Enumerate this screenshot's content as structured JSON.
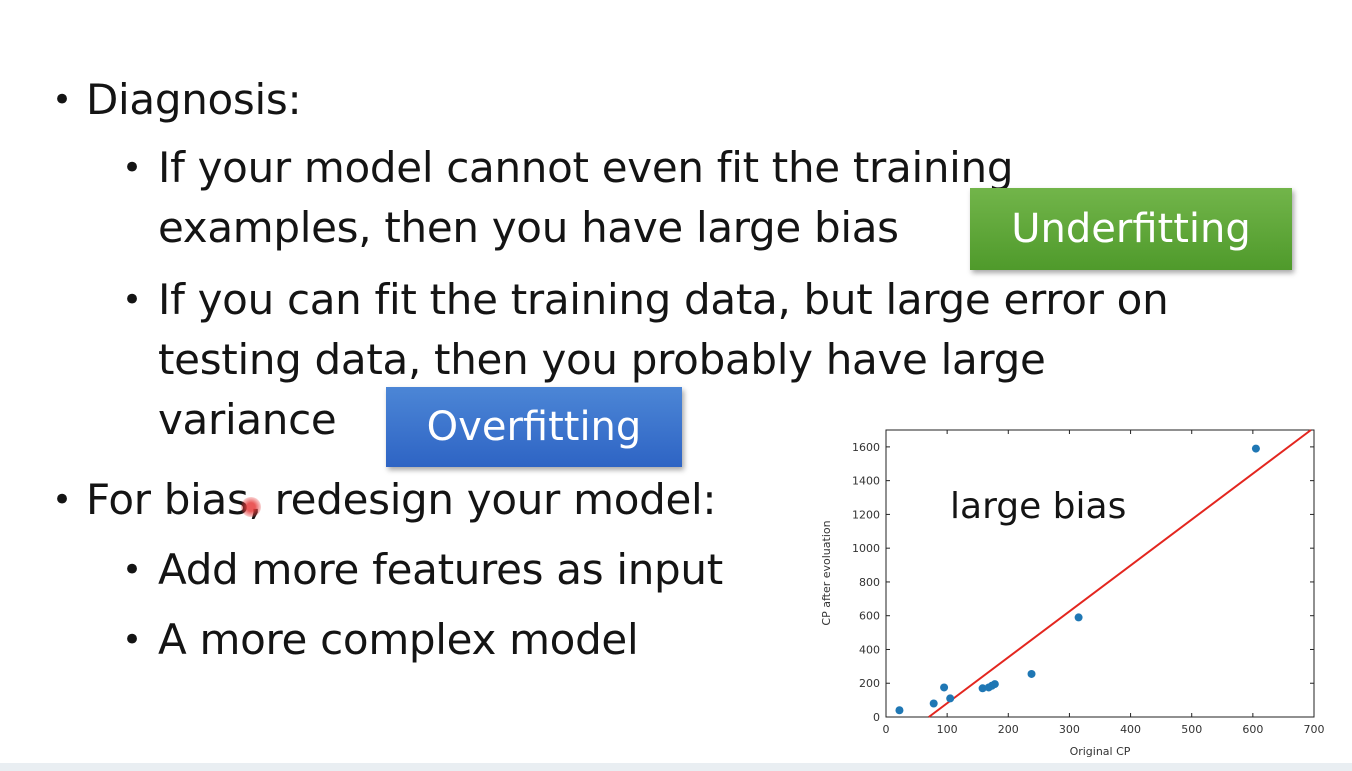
{
  "slide": {
    "diagnosis_title": "Diagnosis:",
    "underfit_line1": "If your model cannot even fit the training",
    "underfit_line2": "examples, then you have large bias",
    "overfit_line1": "If you can fit the training data, but large error on",
    "overfit_line2": "testing data, then you probably have large",
    "overfit_line3": "variance",
    "bias_title": "For bias, redesign your model:",
    "remedy_1": "Add more features as input",
    "remedy_2": "A more complex model",
    "bullet": "•"
  },
  "tags": {
    "underfitting": "Underfitting",
    "overfitting": "Overfitting"
  },
  "colors": {
    "underfitting_tag": "#5aa532",
    "overfitting_tag": "#3a72cc",
    "fit_line": "#e3261f",
    "points": "#1f77b4"
  },
  "chart_data": {
    "type": "scatter",
    "annotation": "large bias",
    "xlabel": "Original CP",
    "ylabel": "CP after evoluation",
    "xlim": [
      0,
      700
    ],
    "ylim": [
      0,
      1700
    ],
    "xticks": [
      0,
      100,
      200,
      300,
      400,
      500,
      600,
      700
    ],
    "yticks": [
      0,
      200,
      400,
      600,
      800,
      1000,
      1200,
      1400,
      1600
    ],
    "points": [
      {
        "x": 22,
        "y": 40
      },
      {
        "x": 78,
        "y": 80
      },
      {
        "x": 95,
        "y": 175
      },
      {
        "x": 105,
        "y": 110
      },
      {
        "x": 158,
        "y": 170
      },
      {
        "x": 168,
        "y": 175
      },
      {
        "x": 173,
        "y": 185
      },
      {
        "x": 178,
        "y": 195
      },
      {
        "x": 238,
        "y": 255
      },
      {
        "x": 315,
        "y": 590
      },
      {
        "x": 605,
        "y": 1590
      }
    ],
    "fit_line": [
      {
        "x": 70,
        "y": 0
      },
      {
        "x": 695,
        "y": 1700
      }
    ]
  }
}
